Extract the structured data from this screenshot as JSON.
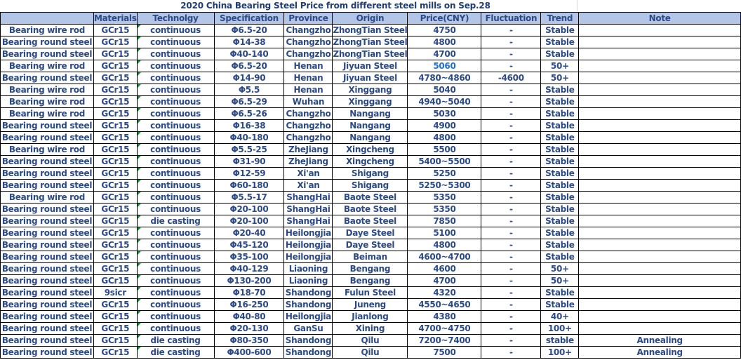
{
  "title": "2020 China Bearing Steel Price from different steel mills on  Sep.28",
  "headers": [
    "",
    "Materials",
    "Technolgy",
    "Specification",
    "Province",
    "Origin",
    "Price(CNY)",
    "Fluctuation",
    "Trend",
    "Note"
  ],
  "rows": [
    [
      "Bearing wire rod",
      "GCr15",
      "continuous",
      "Φ6.5-20",
      "Changzho",
      "ZhongTian Steel",
      "4750",
      "-",
      "Stable",
      ""
    ],
    [
      "Bearing round steel",
      "GCr15",
      "continuous",
      "Φ14-38",
      "Changzho",
      "ZhongTian Steel",
      "4800",
      "-",
      "Stable",
      ""
    ],
    [
      "Bearing round steel",
      "GCr15",
      "continuous",
      "Φ40-140",
      "Changzho",
      "ZhongTian Steel",
      "4700",
      "-",
      "Stable",
      ""
    ],
    [
      "Bearing wire rod",
      "GCr15",
      "continuous",
      "Φ6.5-20",
      "Henan",
      "Jiyuan Steel",
      "5060",
      "-",
      "50+",
      ""
    ],
    [
      "Bearing round steel",
      "GCr15",
      "continuous",
      "Φ14-90",
      "Henan",
      "Jiyuan Steel",
      "4780~4860",
      "-4600",
      "50+",
      ""
    ],
    [
      "Bearing wire rod",
      "GCr15",
      "continuous",
      "Φ5.5",
      "Henan",
      "Xinggang",
      "5040",
      "-",
      "Stable",
      ""
    ],
    [
      "Bearing wire rod",
      "GCr15",
      "continuous",
      "Φ6.5-29",
      "Wuhan",
      "Xinggang",
      "4940~5040",
      "-",
      "Stable",
      ""
    ],
    [
      "Bearing wire rod",
      "GCr15",
      "continuous",
      "Φ6.5-26",
      "Changzho",
      "Nangang",
      "5030",
      "-",
      "Stable",
      ""
    ],
    [
      "Bearing round steel",
      "GCr15",
      "continuous",
      "Φ16-38",
      "Changzho",
      "Nangang",
      "4900",
      "-",
      "Stable",
      ""
    ],
    [
      "Bearing round steel",
      "GCr15",
      "continuous",
      "Φ40-180",
      "Changzho",
      "Nangang",
      "4800",
      "-",
      "Stable",
      ""
    ],
    [
      "Bearing wire rod",
      "GCr15",
      "continuous",
      "Φ5.5-25",
      "ZheJiang",
      "Xingcheng",
      "5500",
      "-",
      "Stable",
      ""
    ],
    [
      "Bearing round steel",
      "GCr15",
      "continuous",
      "Φ31-90",
      "ZheJiang",
      "Xingcheng",
      "5400~5500",
      "-",
      "Stable",
      ""
    ],
    [
      "Bearing round steel",
      "GCr15",
      "continuous",
      "Φ12-59",
      "Xi'an",
      "Shigang",
      "5250",
      "-",
      "Stable",
      ""
    ],
    [
      "Bearing round steel",
      "GCr15",
      "continuous",
      "Φ60-180",
      "Xi'an",
      "Shigang",
      "5250~5300",
      "-",
      "Stable",
      ""
    ],
    [
      "Bearing wire rod",
      "GCr15",
      "continuous",
      "Φ5.5-17",
      "ShangHai",
      "Baote Steel",
      "5350",
      "-",
      "Stable",
      ""
    ],
    [
      "Bearing round steel",
      "GCr15",
      "continuous",
      "Φ20-100",
      "ShangHai",
      "Baote Steel",
      "5350",
      "-",
      "Stable",
      ""
    ],
    [
      "Bearing round steel",
      "GCr15",
      "die casting",
      "Φ20-100",
      "ShangHai",
      "Baote Steel",
      "7850",
      "-",
      "Stable",
      ""
    ],
    [
      "Bearing round steel",
      "GCr15",
      "continuous",
      "Φ20-40",
      "Heilongjia",
      "Daye  Steel",
      "5100",
      "-",
      "Stable",
      ""
    ],
    [
      "Bearing round steel",
      "GCr15",
      "continuous",
      "Φ45-120",
      "Heilongjia",
      "Daye  Steel",
      "4800",
      "-",
      "Stable",
      ""
    ],
    [
      "Bearing round steel",
      "GCr15",
      "continuous",
      "Φ35-100",
      "Heilongjia",
      "Beiman",
      "4600~4700",
      "-",
      "Stable",
      ""
    ],
    [
      "Bearing round steel",
      "GCr15",
      "continuous",
      "Φ40-129",
      "Liaoning",
      "Bengang",
      "4600",
      "-",
      "50+",
      ""
    ],
    [
      "Bearing round steel",
      "GCr15",
      "continuous",
      "Φ130-200",
      "Liaoning",
      "Bengang",
      "4700",
      "-",
      "50+",
      ""
    ],
    [
      "Bearing round steel",
      "9sicr",
      "continuous",
      "Φ18-70",
      "Shandong",
      "Fulun Steel",
      "4320",
      "-",
      "Stable",
      ""
    ],
    [
      "Bearing round steel",
      "GCr15",
      "continuous",
      "Φ16-250",
      "Shandong",
      "Juneng",
      "4550~4650",
      "-",
      "Stable",
      ""
    ],
    [
      "Bearing round steel",
      "GCr15",
      "continuous",
      "Φ40-80",
      "Heilongjia",
      "Jianlong",
      "4380",
      "-",
      "40+",
      ""
    ],
    [
      "Bearing round steel",
      "GCr15",
      "continuous",
      "Φ20-130",
      "GanSu",
      "Xining",
      "4700~4750",
      "-",
      "100+",
      ""
    ],
    [
      "Bearing round steel",
      "GCr15",
      "die casting",
      "Φ80-350",
      "Shandong",
      "Qilu",
      "7200~7400",
      "-",
      "stable",
      "Annealing"
    ],
    [
      "Bearing round steel",
      "GCr15",
      "die casting",
      "Φ400-600",
      "Shandong",
      "Qilu",
      "7500",
      "-",
      "100+",
      "Annealing"
    ]
  ],
  "highlighted_price_row": 3,
  "colors": {
    "header_bg": "#b4c6e7",
    "text": "#2b4a86",
    "highlight_price": "#1f6fd0"
  }
}
